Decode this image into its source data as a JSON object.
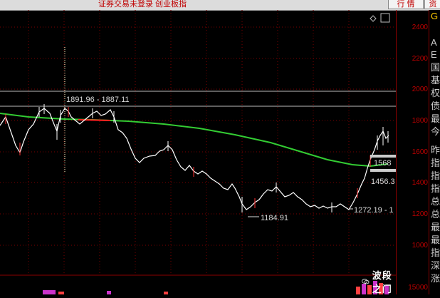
{
  "topbar": {
    "title": "证券交易未登录  创业板指",
    "tab_quote": "行 情",
    "tab_cut": "资"
  },
  "price_axis": {
    "labels": [
      "2400",
      "2200",
      "2000",
      "1800",
      "1600",
      "1400",
      "1200",
      "1000"
    ],
    "volume_label": "15000"
  },
  "annotations": {
    "range_high": "1891.96 - 1887.11",
    "low_1": "1184.91",
    "low_2": "1272.19 - 1",
    "right_1": "1568",
    "right_2": "1456.3"
  },
  "side_panel": {
    "chars": [
      "G",
      "A",
      "E",
      "国",
      "基",
      "权",
      "债",
      "最",
      "今",
      "昨",
      "指",
      "指",
      "指",
      "总",
      "总",
      "最",
      "最",
      "指",
      "深",
      "涨"
    ]
  },
  "watermark": {
    "text": "波段之门",
    "icon": "wechat-icon"
  },
  "colors": {
    "background": "#000000",
    "price_line": "#ffffff",
    "ma_line": "#33cc33",
    "red_segment": "#ff2020",
    "axis_text": "#c00000",
    "grid": "#8b0000"
  }
}
